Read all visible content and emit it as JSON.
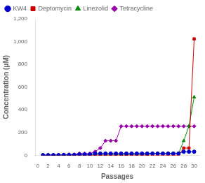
{
  "chart_data": {
    "type": "line",
    "xlabel": "Passages",
    "ylabel": "Concentration (μM)",
    "x": [
      1,
      2,
      3,
      4,
      5,
      6,
      7,
      8,
      9,
      10,
      11,
      12,
      13,
      14,
      15,
      16,
      17,
      18,
      19,
      20,
      21,
      22,
      23,
      24,
      25,
      26,
      27,
      28,
      29,
      30
    ],
    "series": [
      {
        "name": "KW4",
        "color": "#0000cc",
        "marker": "circle",
        "values": [
          2,
          2,
          2,
          2,
          4,
          4,
          4,
          8,
          8,
          8,
          16,
          16,
          16,
          16,
          16,
          16,
          16,
          16,
          16,
          16,
          16,
          16,
          16,
          16,
          16,
          16,
          16,
          32,
          32,
          32
        ]
      },
      {
        "name": "Deptomycin",
        "color": "#cc0000",
        "marker": "square",
        "values": [
          1,
          1,
          1,
          1,
          1,
          1,
          1,
          1,
          1,
          1,
          1,
          1,
          1,
          1,
          1,
          1,
          1,
          1,
          1,
          1,
          1,
          1,
          1,
          1,
          1,
          1,
          1,
          64,
          64,
          1024
        ]
      },
      {
        "name": "Linezolid",
        "color": "#008800",
        "marker": "triangle",
        "values": [
          1,
          1,
          1,
          1,
          1,
          1,
          1,
          1,
          1,
          2,
          2,
          4,
          4,
          4,
          4,
          4,
          4,
          8,
          8,
          8,
          8,
          16,
          16,
          16,
          16,
          16,
          16,
          128,
          256,
          512
        ]
      },
      {
        "name": "Tetracycline",
        "color": "#9900aa",
        "marker": "diamond",
        "values": [
          2,
          2,
          2,
          4,
          4,
          8,
          8,
          16,
          16,
          16,
          32,
          64,
          128,
          128,
          128,
          256,
          256,
          256,
          256,
          256,
          256,
          256,
          256,
          256,
          256,
          256,
          256,
          256,
          256,
          256
        ]
      }
    ],
    "xlim": [
      -0.5,
      31
    ],
    "ylim": [
      0,
      1200
    ],
    "xticks": [
      0,
      2,
      4,
      6,
      8,
      10,
      12,
      14,
      16,
      18,
      20,
      22,
      24,
      26,
      28,
      30
    ],
    "yticks": [
      0,
      200,
      400,
      600,
      800,
      1000,
      1200
    ],
    "legend": "upper left",
    "grid": false
  }
}
